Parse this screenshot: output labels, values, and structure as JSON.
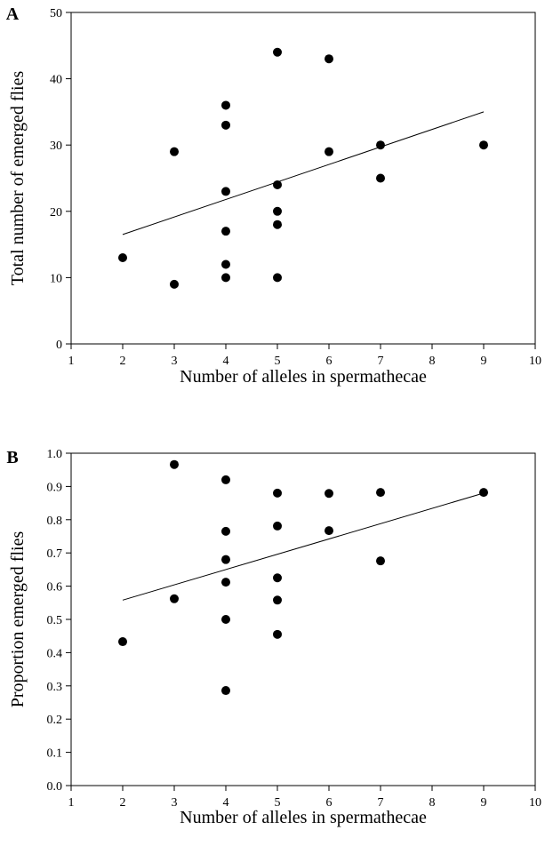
{
  "chart_data": [
    {
      "type": "scatter",
      "panel_label": "A",
      "xlabel": "Number of alleles in spermathecae",
      "ylabel": "Total number of emerged flies",
      "xlim": [
        1,
        10
      ],
      "ylim": [
        0,
        50
      ],
      "xticks": [
        1,
        2,
        3,
        4,
        5,
        6,
        7,
        8,
        9,
        10
      ],
      "yticks": [
        0,
        10,
        20,
        30,
        40,
        50
      ],
      "xtick_labels": [
        "1",
        "2",
        "3",
        "4",
        "5",
        "6",
        "7",
        "8",
        "9",
        "10"
      ],
      "ytick_labels": [
        "0",
        "10",
        "20",
        "30",
        "40",
        "50"
      ],
      "points": [
        {
          "x": 2,
          "y": 13
        },
        {
          "x": 3,
          "y": 29
        },
        {
          "x": 3,
          "y": 9
        },
        {
          "x": 4,
          "y": 36
        },
        {
          "x": 4,
          "y": 33
        },
        {
          "x": 4,
          "y": 23
        },
        {
          "x": 4,
          "y": 17
        },
        {
          "x": 4,
          "y": 12
        },
        {
          "x": 4,
          "y": 10
        },
        {
          "x": 5,
          "y": 44
        },
        {
          "x": 5,
          "y": 24
        },
        {
          "x": 5,
          "y": 20
        },
        {
          "x": 5,
          "y": 18
        },
        {
          "x": 5,
          "y": 10
        },
        {
          "x": 6,
          "y": 43
        },
        {
          "x": 6,
          "y": 29
        },
        {
          "x": 7,
          "y": 30
        },
        {
          "x": 7,
          "y": 25
        },
        {
          "x": 9,
          "y": 30
        }
      ],
      "trendline": {
        "x": [
          2,
          9
        ],
        "y": [
          16.5,
          35
        ]
      },
      "grid": false,
      "color": "#000000"
    },
    {
      "type": "scatter",
      "panel_label": "B",
      "xlabel": "Number of alleles in spermathecae",
      "ylabel": "Proportion emerged flies",
      "xlim": [
        1,
        10
      ],
      "ylim": [
        0,
        1
      ],
      "xticks": [
        1,
        2,
        3,
        4,
        5,
        6,
        7,
        8,
        9,
        10
      ],
      "yticks": [
        0,
        0.1,
        0.2,
        0.3,
        0.4,
        0.5,
        0.6,
        0.7,
        0.8,
        0.9,
        1.0
      ],
      "xtick_labels": [
        "1",
        "2",
        "3",
        "4",
        "5",
        "6",
        "7",
        "8",
        "9",
        "10"
      ],
      "ytick_labels": [
        "0.0",
        "0.1",
        "0.2",
        "0.3",
        "0.4",
        "0.5",
        "0.6",
        "0.7",
        "0.8",
        "0.9",
        "1.0"
      ],
      "points": [
        {
          "x": 2,
          "y": 0.433
        },
        {
          "x": 3,
          "y": 0.966
        },
        {
          "x": 3,
          "y": 0.562
        },
        {
          "x": 4,
          "y": 0.92
        },
        {
          "x": 4,
          "y": 0.765
        },
        {
          "x": 4,
          "y": 0.68
        },
        {
          "x": 4,
          "y": 0.612
        },
        {
          "x": 4,
          "y": 0.5
        },
        {
          "x": 4,
          "y": 0.286
        },
        {
          "x": 5,
          "y": 0.88
        },
        {
          "x": 5,
          "y": 0.781
        },
        {
          "x": 5,
          "y": 0.625
        },
        {
          "x": 5,
          "y": 0.558
        },
        {
          "x": 5,
          "y": 0.455
        },
        {
          "x": 6,
          "y": 0.879
        },
        {
          "x": 6,
          "y": 0.767
        },
        {
          "x": 7,
          "y": 0.882
        },
        {
          "x": 7,
          "y": 0.676
        },
        {
          "x": 9,
          "y": 0.882
        }
      ],
      "trendline": {
        "x": [
          2,
          9
        ],
        "y": [
          0.558,
          0.88
        ]
      },
      "grid": false,
      "color": "#000000"
    }
  ]
}
